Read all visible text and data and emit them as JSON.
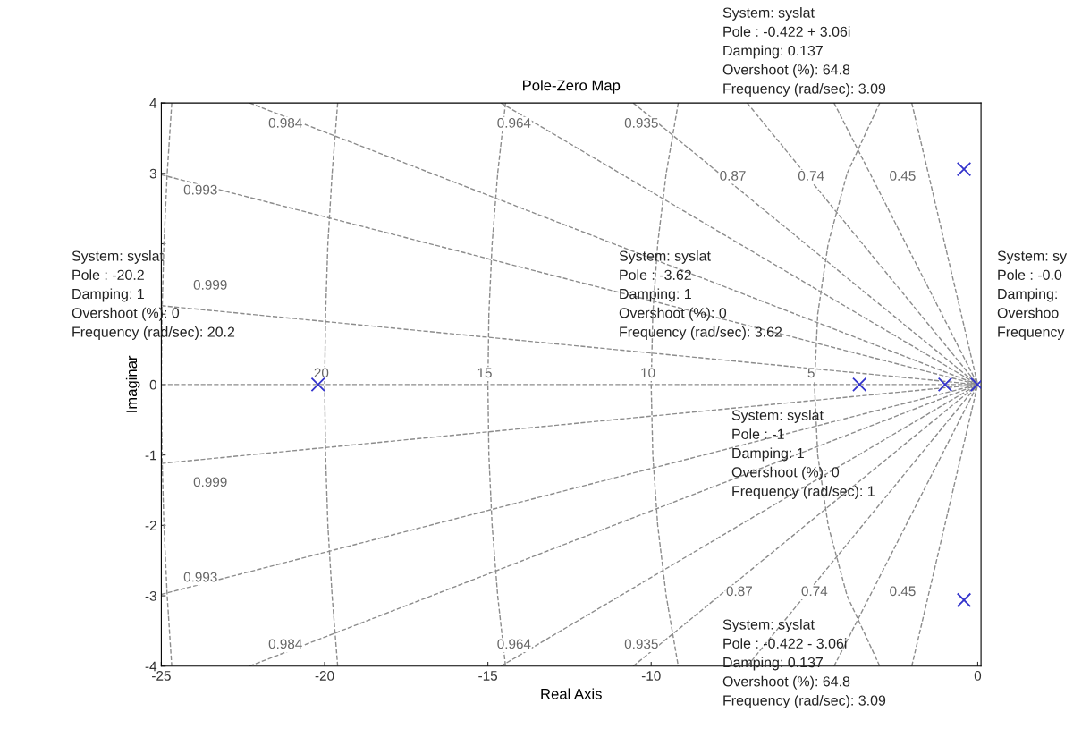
{
  "chart_data": {
    "type": "scatter",
    "title": "Pole-Zero Map",
    "xlabel": "Real Axis",
    "ylabel": "Imaginar",
    "xlim": [
      -25,
      0.1
    ],
    "ylim": [
      -4,
      4
    ],
    "xticks": [
      -25,
      -20,
      -15,
      -10,
      {
        "value": -5,
        "label": null
      },
      0
    ],
    "yticks": [
      -4,
      -3,
      -2,
      -1,
      0,
      {
        "value": 1,
        "label": null
      },
      {
        "value": 2,
        "label": null
      },
      3,
      4
    ],
    "series": [
      {
        "color": "#3333cc",
        "marker": "cross",
        "x": [
          -20.2,
          -3.62,
          -1,
          -0.422,
          -0.422,
          -0.01
        ],
        "values": [
          0,
          0,
          0,
          3.06,
          -3.06,
          0
        ]
      },
      {
        "type": "line",
        "line_style": "dashed",
        "color": "#8c8c8c",
        "x": [
          -25,
          0
        ],
        "values": [
          0,
          0
        ]
      },
      {
        "type": "line",
        "line_style": "dashed",
        "color": "#8c8c8c",
        "x": [
          -25,
          0
        ],
        "values": [
          1.12,
          0
        ]
      },
      {
        "type": "line",
        "line_style": "dashed",
        "color": "#8c8c8c",
        "x": [
          -25,
          0
        ],
        "values": [
          -1.12,
          0
        ]
      },
      {
        "type": "line",
        "line_style": "dashed",
        "color": "#8c8c8c",
        "x": [
          -25,
          0
        ],
        "values": [
          2.98,
          0
        ]
      },
      {
        "type": "line",
        "line_style": "dashed",
        "color": "#8c8c8c",
        "x": [
          -25,
          0
        ],
        "values": [
          -2.98,
          0
        ]
      },
      {
        "type": "line",
        "line_style": "dashed",
        "color": "#8c8c8c",
        "x": [
          -22.3,
          0
        ],
        "values": [
          4,
          0
        ]
      },
      {
        "type": "line",
        "line_style": "dashed",
        "color": "#8c8c8c",
        "x": [
          -22.3,
          0
        ],
        "values": [
          -4,
          0
        ]
      },
      {
        "type": "line",
        "line_style": "dashed",
        "color": "#8c8c8c",
        "x": [
          -14.6,
          0
        ],
        "values": [
          4,
          0
        ]
      },
      {
        "type": "line",
        "line_style": "dashed",
        "color": "#8c8c8c",
        "x": [
          -14.6,
          0
        ],
        "values": [
          -4,
          0
        ]
      },
      {
        "type": "line",
        "line_style": "dashed",
        "color": "#8c8c8c",
        "x": [
          -10.55,
          0
        ],
        "values": [
          4,
          0
        ]
      },
      {
        "type": "line",
        "line_style": "dashed",
        "color": "#8c8c8c",
        "x": [
          -10.55,
          0
        ],
        "values": [
          -4,
          0
        ]
      },
      {
        "type": "line",
        "line_style": "dashed",
        "color": "#8c8c8c",
        "x": [
          -7.06,
          0
        ],
        "values": [
          4,
          0
        ]
      },
      {
        "type": "line",
        "line_style": "dashed",
        "color": "#8c8c8c",
        "x": [
          -7.06,
          0
        ],
        "values": [
          -4,
          0
        ]
      },
      {
        "type": "line",
        "line_style": "dashed",
        "color": "#8c8c8c",
        "x": [
          -4.4,
          0
        ],
        "values": [
          4,
          0
        ]
      },
      {
        "type": "line",
        "line_style": "dashed",
        "color": "#8c8c8c",
        "x": [
          -4.4,
          0
        ],
        "values": [
          -4,
          0
        ]
      },
      {
        "type": "line",
        "line_style": "dashed",
        "color": "#8c8c8c",
        "x": [
          -2.02,
          0
        ],
        "values": [
          4,
          0
        ]
      },
      {
        "type": "line",
        "line_style": "dashed",
        "color": "#8c8c8c",
        "x": [
          -2.02,
          0
        ],
        "values": [
          -4,
          0
        ]
      },
      {
        "type": "line",
        "line_style": "dashed",
        "color": "#8c8c8c",
        "x": [
          -3,
          -4,
          -4.58,
          -4.9,
          -5,
          -4.9,
          -4.58,
          -4,
          -3
        ],
        "values": [
          4,
          3,
          2,
          1,
          0,
          -1,
          -2,
          -3,
          -4
        ]
      },
      {
        "type": "line",
        "line_style": "dashed",
        "color": "#8c8c8c",
        "x": [
          -9.17,
          -9.54,
          -9.8,
          -9.95,
          -10,
          -9.95,
          -9.8,
          -9.54,
          -9.17
        ],
        "values": [
          4,
          3,
          2,
          1,
          0,
          -1,
          -2,
          -3,
          -4
        ]
      },
      {
        "type": "line",
        "line_style": "dashed",
        "color": "#8c8c8c",
        "x": [
          -14.46,
          -14.7,
          -14.87,
          -14.97,
          -15,
          -14.97,
          -14.87,
          -14.7,
          -14.46
        ],
        "values": [
          4,
          3,
          2,
          1,
          0,
          -1,
          -2,
          -3,
          -4
        ]
      },
      {
        "type": "line",
        "line_style": "dashed",
        "color": "#8c8c8c",
        "x": [
          -19.6,
          -19.77,
          -19.9,
          -19.97,
          -20,
          -19.97,
          -19.9,
          -19.77,
          -19.6
        ],
        "values": [
          4,
          3,
          2,
          1,
          0,
          -1,
          -2,
          -3,
          -4
        ]
      },
      {
        "type": "line",
        "line_style": "dashed",
        "color": "#8c8c8c",
        "x": [
          -24.68,
          -24.82,
          -24.92,
          -24.98,
          -25,
          -24.98,
          -24.92,
          -24.82,
          -24.68
        ],
        "values": [
          4,
          3,
          2,
          1,
          0,
          -1,
          -2,
          -3,
          -4
        ]
      }
    ],
    "annotations": [
      "System: syslat\nPole : -20.2\nDamping: 1\nOvershoot (%): 0\nFrequency (rad/sec): 20.2",
      "System: syslat\nPole : -3.62\nDamping: 1\nOvershoot (%): 0\nFrequency (rad/sec): 3.62",
      "System: syslat\nPole : -1\nDamping: 1\nOvershoot (%): 0\nFrequency (rad/sec): 1",
      "System: syslat\nPole : -0.422 + 3.06i\nDamping: 0.137\nOvershoot (%): 64.8\nFrequency (rad/sec): 3.09",
      "System: syslat\nPole : -0.422 - 3.06i\nDamping: 0.137\nOvershoot (%): 64.8\nFrequency (rad/sec): 3.09",
      "System: sy\nPole : -0.0\nDamping: \nOvershoo\nFrequency",
      "0.984",
      "0.984",
      "0.964",
      "0.964",
      "0.935",
      "0.935",
      "0.87",
      "0.87",
      "0.74",
      "0.74",
      "0.45",
      "0.45",
      "0.993",
      "0.993",
      "0.999",
      "0.999",
      "20",
      "15",
      "10",
      "5"
    ]
  }
}
